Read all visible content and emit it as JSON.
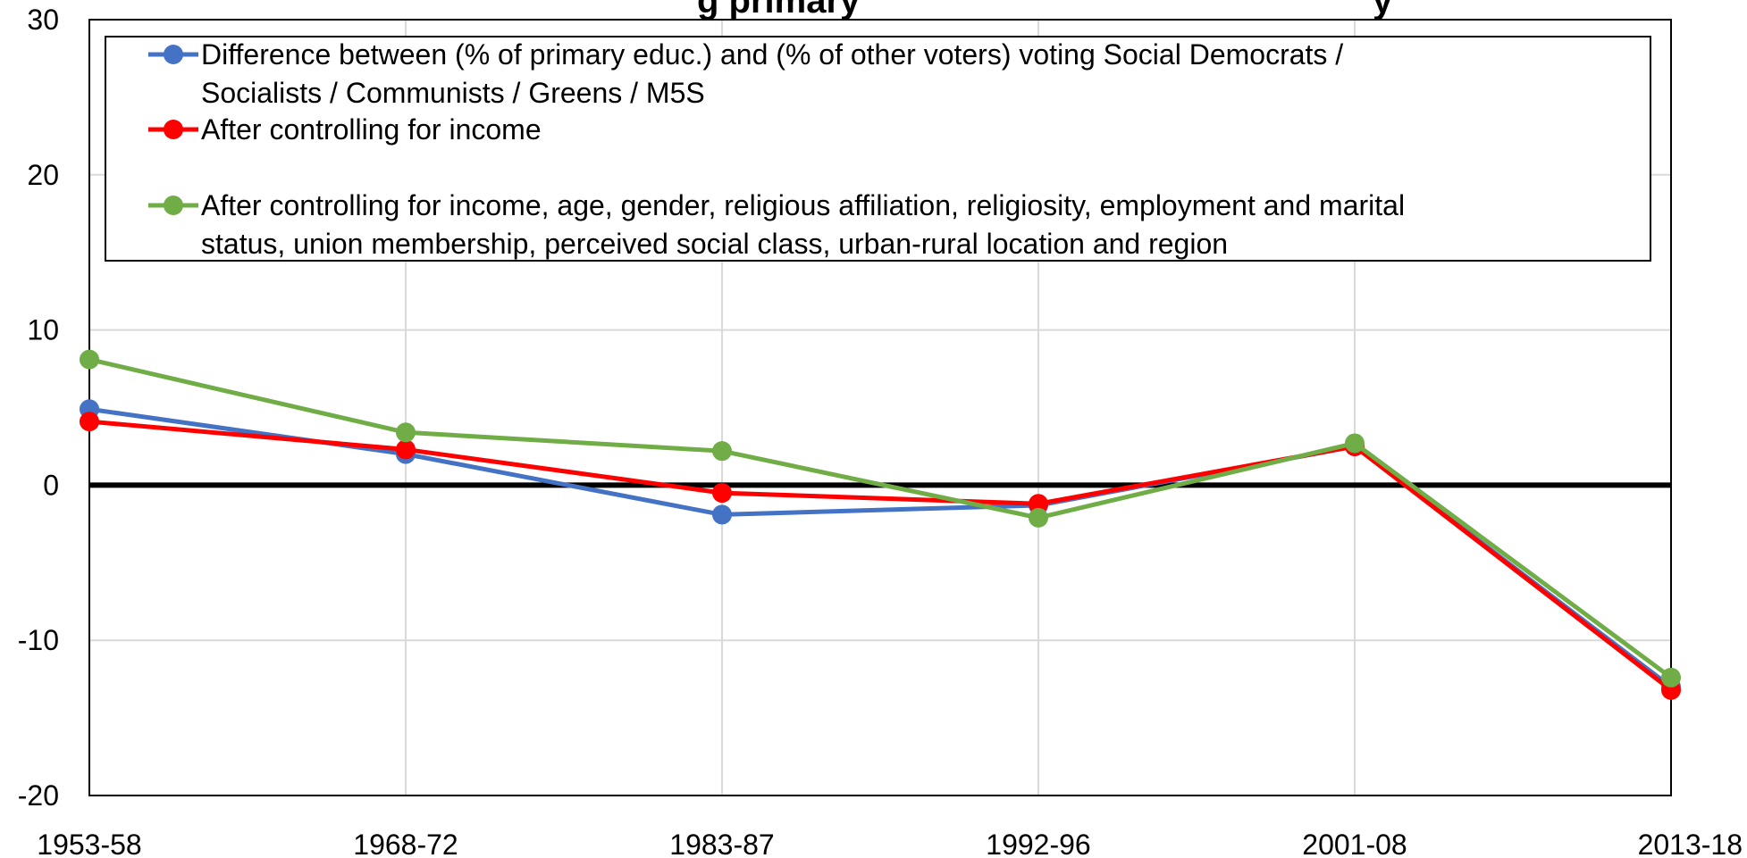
{
  "chart_data": {
    "type": "line",
    "title": "g primary",
    "title_right": "y",
    "x": [
      "1953-58",
      "1968-72",
      "1983-87",
      "1992-96",
      "2001-08",
      "2013-18"
    ],
    "ylim": [
      -20,
      30
    ],
    "yticks": [
      30,
      20,
      10,
      0,
      -10,
      -20
    ],
    "grid": true,
    "legend_position": "top",
    "series": [
      {
        "name": "Difference between (% of primary educ.) and (% of other voters) voting Social Democrats / Socialists / Communists / Greens / M5S",
        "legend_lines": [
          "Difference between (% of primary educ.) and (% of other voters) voting Social Democrats /",
          "Socialists / Communists / Greens / M5S"
        ],
        "color": "#4472C4",
        "values": [
          4.9,
          2.0,
          -1.9,
          -1.3,
          2.5,
          -13.0
        ]
      },
      {
        "name": "After controlling for income",
        "legend_lines": [
          "After controlling for income"
        ],
        "color": "#FF0000",
        "values": [
          4.1,
          2.3,
          -0.5,
          -1.2,
          2.5,
          -13.2
        ]
      },
      {
        "name": "After controlling for income, age, gender, religious affiliation, religiosity, employment and marital status, union membership, perceived social class, urban-rural location and region",
        "legend_lines": [
          "After controlling for income, age, gender, religious affiliation, religiosity, employment and marital",
          "status, union membership, perceived social class, urban-rural location and region"
        ],
        "color": "#70AD47",
        "values": [
          8.1,
          3.4,
          2.2,
          -2.1,
          2.7,
          -12.4
        ]
      }
    ]
  }
}
